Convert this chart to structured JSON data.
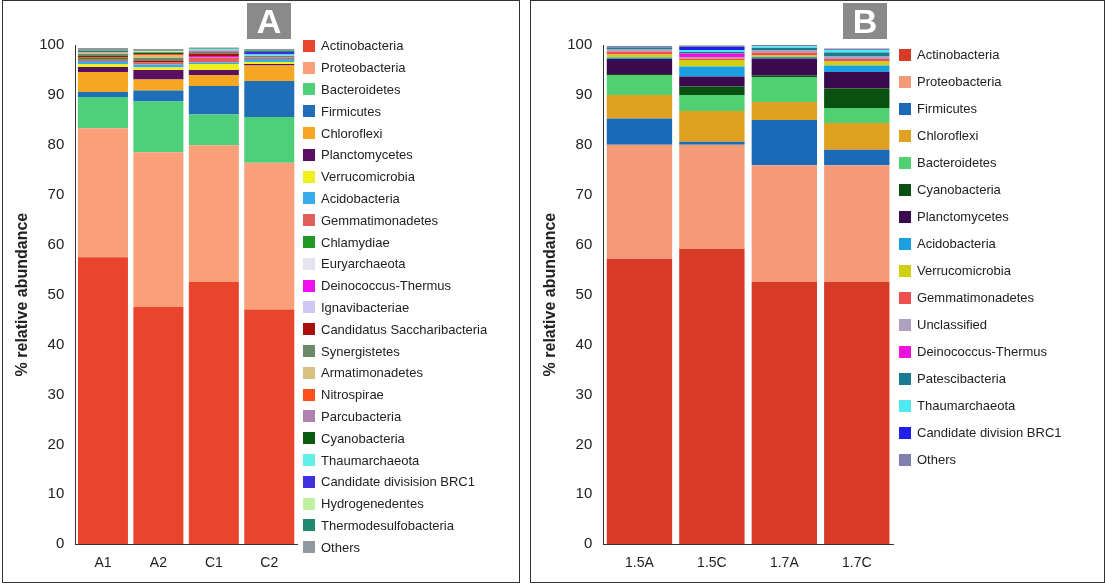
{
  "chart_data": [
    {
      "type": "bar",
      "title": "A",
      "ylabel": "% relative abundance",
      "categories": [
        "A1",
        "A2",
        "C1",
        "C2"
      ],
      "stacked": true,
      "legend": "right",
      "grid": false,
      "ylim": [
        0,
        100
      ],
      "yticks": [
        0,
        10,
        20,
        30,
        40,
        50,
        60,
        70,
        80,
        90,
        100
      ],
      "series": [
        {
          "name": "Actinobacteria",
          "color": "#e8452c",
          "values": [
            57.5,
            47.5,
            52.5,
            47
          ]
        },
        {
          "name": "Proteobacteria",
          "color": "#f9a07a",
          "values": [
            25.8,
            31,
            27.4,
            29.4
          ]
        },
        {
          "name": "Bacteroidetes",
          "color": "#4ed07a",
          "values": [
            6.3,
            10.2,
            6.2,
            9.2
          ]
        },
        {
          "name": "Firmicutes",
          "color": "#1f6fb8",
          "values": [
            1.0,
            2.2,
            5.7,
            7.2
          ]
        },
        {
          "name": "Chloroflexi",
          "color": "#f5a623",
          "values": [
            4.0,
            2.2,
            2.2,
            3.1
          ]
        },
        {
          "name": "Planctomycetes",
          "color": "#5a1060",
          "values": [
            1.0,
            1.9,
            1.0,
            0.3
          ]
        },
        {
          "name": "Verrucomicrobia",
          "color": "#f0f020",
          "values": [
            0.6,
            0.5,
            1.2,
            0.4
          ]
        },
        {
          "name": "Acidobacteria",
          "color": "#3aaae8",
          "values": [
            0.6,
            0.6,
            0.3,
            0.6
          ]
        },
        {
          "name": "Gemmatimonadetes",
          "color": "#e0605a",
          "values": [
            0.4,
            0.4,
            1.0,
            0.3
          ]
        },
        {
          "name": "Chlamydiae",
          "color": "#229922",
          "values": [
            0.3,
            0,
            0,
            0
          ]
        },
        {
          "name": "Euryarchaeota",
          "color": "#e4e4f0",
          "values": [
            0,
            null,
            0,
            0
          ]
        },
        {
          "name": "Deinococcus-Thermus",
          "color": "#ee10ee",
          "values": [
            0,
            0,
            0.3,
            0
          ]
        },
        {
          "name": "Ignavibacteriae",
          "color": "#d0c8f4",
          "values": [
            null,
            0,
            0,
            null
          ]
        },
        {
          "name": "Candidatus Saccharibacteria",
          "color": "#aa1010",
          "values": [
            0.3,
            0.3,
            0.5,
            0
          ]
        },
        {
          "name": "Synergistetes",
          "color": "#6a8a6a",
          "values": [
            0.4,
            0.6,
            0.3,
            0.3
          ]
        },
        {
          "name": "Armatimonadetes",
          "color": "#d8c080",
          "values": [
            0.3,
            0.5,
            0,
            0
          ]
        },
        {
          "name": "Nitrospirae",
          "color": "#ff5020",
          "values": [
            0,
            0.3,
            0,
            0
          ]
        },
        {
          "name": "Parcubacteria",
          "color": "#b080b0",
          "values": [
            0,
            0,
            0.3,
            0
          ]
        },
        {
          "name": "Cyanobacteria",
          "color": "#0a5a10",
          "values": [
            0,
            0.3,
            0,
            0
          ]
        },
        {
          "name": "Thaumarchaeota",
          "color": "#60f0e8",
          "values": [
            0,
            0,
            0.3,
            0.3
          ]
        },
        {
          "name": "Candidate divisision BRC1",
          "color": "#4030e0",
          "values": [
            0,
            0,
            0,
            0.5
          ]
        },
        {
          "name": "Hydrogenedentes",
          "color": "#c0f0a0",
          "values": [
            0,
            0.3,
            0,
            0
          ]
        },
        {
          "name": "Thermodesulfobacteria",
          "color": "#208870",
          "values": [
            0.3,
            0,
            0,
            0.3
          ]
        },
        {
          "name": "Others",
          "color": "#9098a0",
          "values": [
            0.6,
            0.4,
            0.3,
            0.3
          ]
        }
      ]
    },
    {
      "type": "bar",
      "title": "B",
      "ylabel": "% relative abundance",
      "categories": [
        "1.5A",
        "1.5C",
        "1.7A",
        "1.7C"
      ],
      "stacked": true,
      "legend": "right",
      "grid": false,
      "ylim": [
        0,
        100
      ],
      "yticks": [
        0,
        10,
        20,
        30,
        40,
        50,
        60,
        70,
        80,
        90,
        100
      ],
      "series": [
        {
          "name": "Actinobacteria",
          "color": "#d83a28",
          "values": [
            57.2,
            59.2,
            52.5,
            52.5
          ]
        },
        {
          "name": "Proteobacteria",
          "color": "#f49a78",
          "values": [
            22.8,
            20.8,
            23.4,
            23.4
          ]
        },
        {
          "name": "Firmicutes",
          "color": "#1a6ab8",
          "values": [
            5.3,
            0.6,
            9.1,
            3.1
          ]
        },
        {
          "name": "Chloroflexi",
          "color": "#e0a020",
          "values": [
            4.7,
            6.2,
            3.6,
            5.4
          ]
        },
        {
          "name": "Bacteroidetes",
          "color": "#50d070",
          "values": [
            3.9,
            3.2,
            5.0,
            3.0
          ]
        },
        {
          "name": "Cyanobacteria",
          "color": "#0a5010",
          "values": [
            0.3,
            1.7,
            0.3,
            3.9
          ]
        },
        {
          "name": "Planctomycetes",
          "color": "#3a0a50",
          "values": [
            3.0,
            2.0,
            3.4,
            3.3
          ]
        },
        {
          "name": "Acidobacteria",
          "color": "#1aa0e0",
          "values": [
            0.3,
            2.0,
            0.3,
            1.3
          ]
        },
        {
          "name": "Verrucomicrobia",
          "color": "#d0d010",
          "values": [
            0.6,
            1.3,
            0.3,
            0.8
          ]
        },
        {
          "name": "Gemmatimonadetes",
          "color": "#ee5050",
          "values": [
            0.6,
            0.3,
            0.6,
            0.5
          ]
        },
        {
          "name": "Unclassified",
          "color": "#b0a0c0",
          "values": [
            0.4,
            0.3,
            0.5,
            0.5
          ]
        },
        {
          "name": "Deinococcus-Thermus",
          "color": "#ee10dd",
          "values": [
            0,
            0.7,
            0,
            0
          ]
        },
        {
          "name": "Patescibacteria",
          "color": "#1a7a90",
          "values": [
            0.4,
            0.3,
            0.4,
            0.8
          ]
        },
        {
          "name": "Thaumarchaeota",
          "color": "#50e8f0",
          "values": [
            0,
            0.4,
            0.3,
            0.5
          ]
        },
        {
          "name": "Candidate division BRC1",
          "color": "#2020ee",
          "values": [
            0,
            0.6,
            0,
            0
          ]
        },
        {
          "name": "Others",
          "color": "#8080b0",
          "values": [
            0.3,
            0.3,
            0.3,
            0.3
          ]
        }
      ]
    }
  ]
}
